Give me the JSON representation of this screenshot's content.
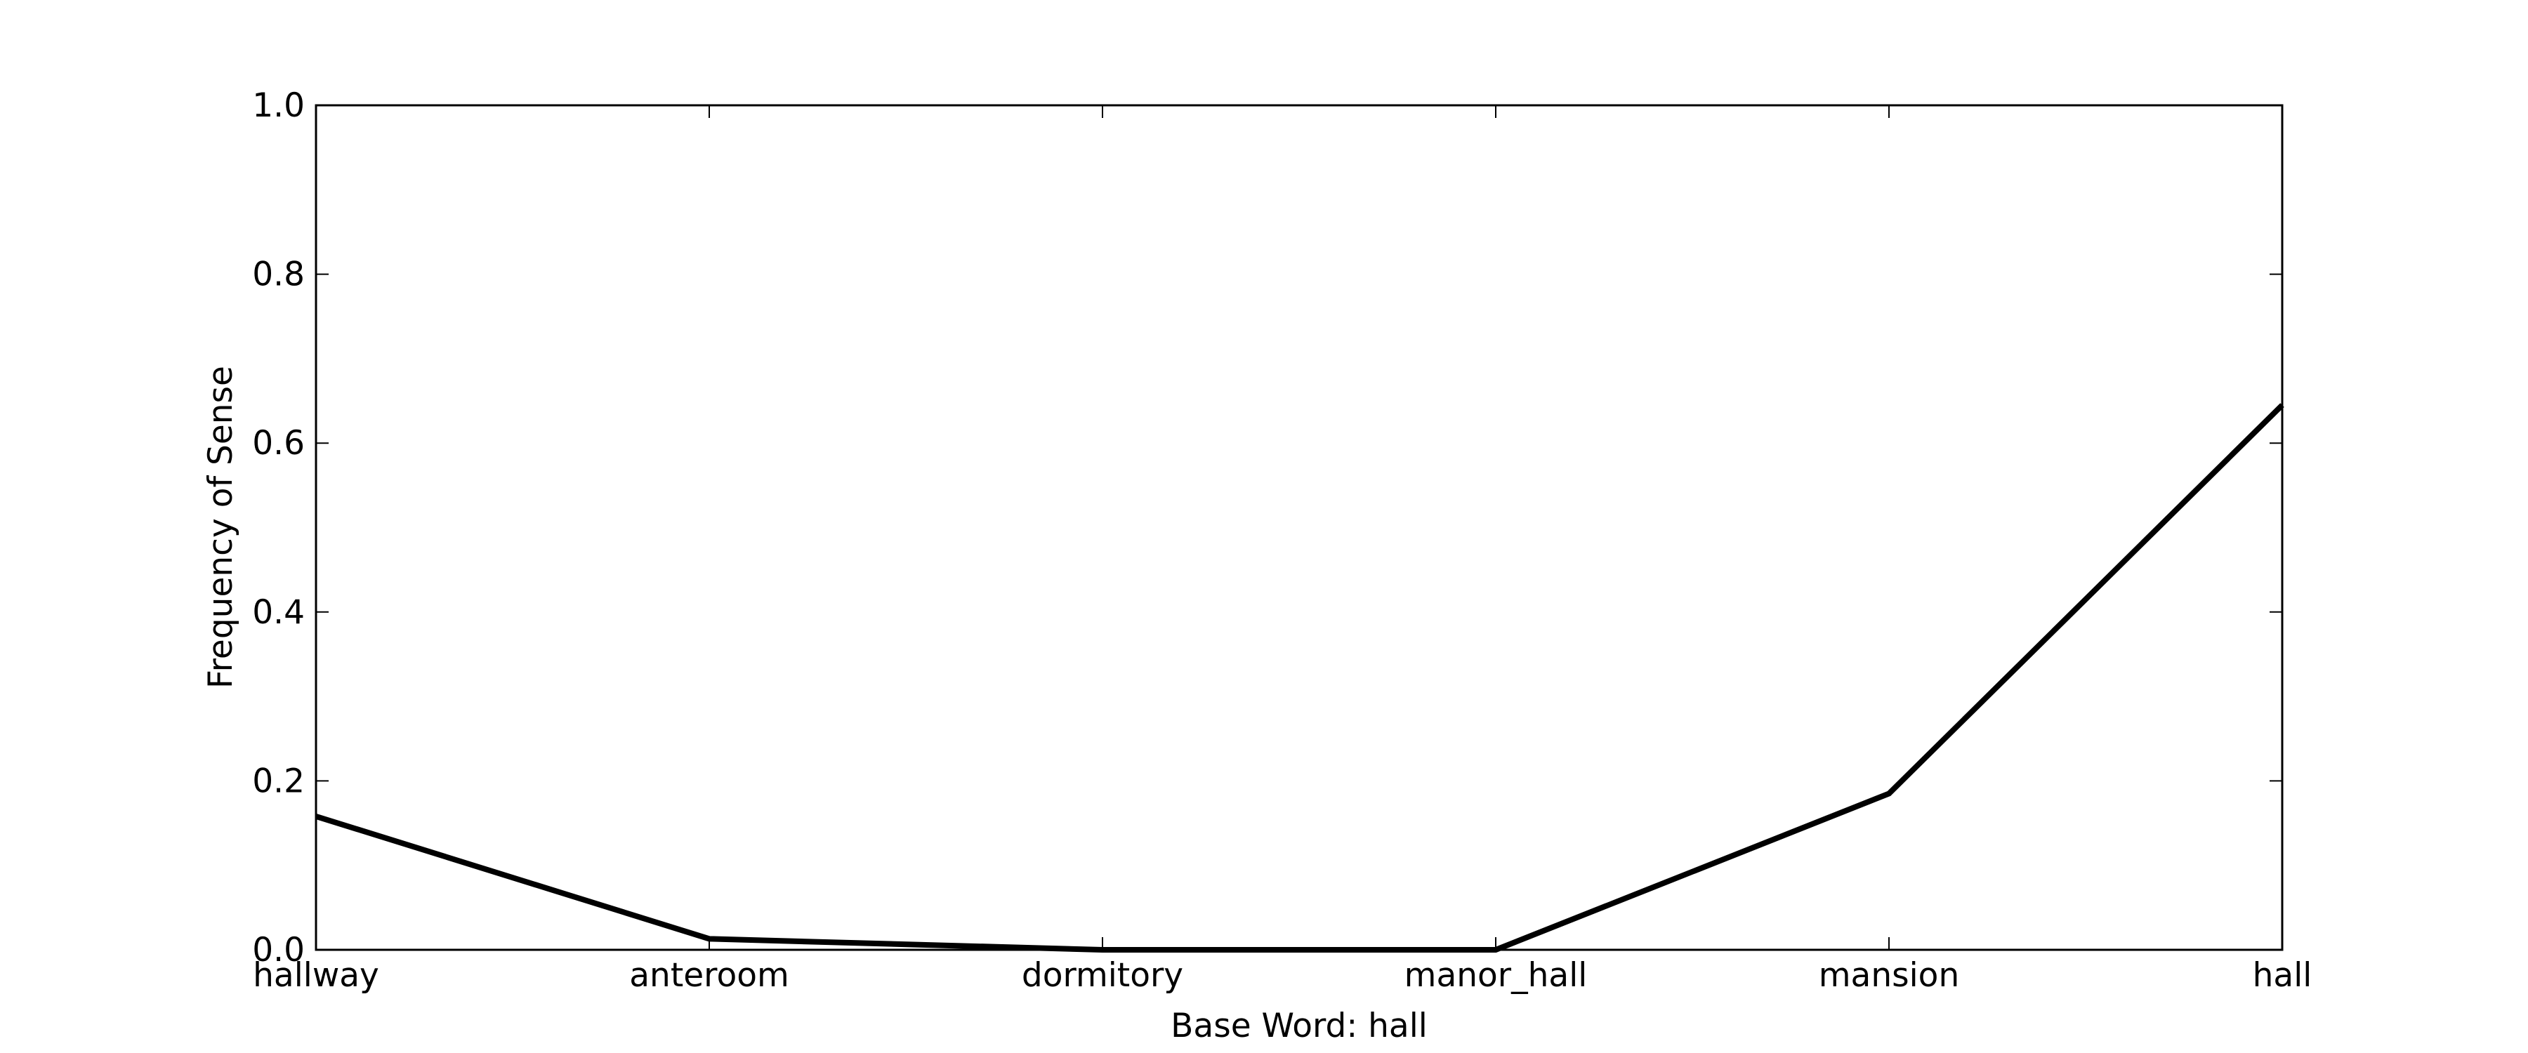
{
  "chart_data": {
    "type": "line",
    "categories": [
      "hallway",
      "anteroom",
      "dormitory",
      "manor_hall",
      "mansion",
      "hall"
    ],
    "series": [
      {
        "values": [
          0.158,
          0.013,
          0.0,
          0.0,
          0.185,
          0.645
        ]
      }
    ],
    "title": "",
    "xlabel": "Base Word: hall",
    "ylabel": "Frequency of Sense",
    "ylim": [
      0.0,
      1.0
    ],
    "yticks": [
      "0.0",
      "0.2",
      "0.4",
      "0.6",
      "0.8",
      "1.0"
    ],
    "grid": false,
    "legend": "none",
    "line_color": "#000000"
  }
}
